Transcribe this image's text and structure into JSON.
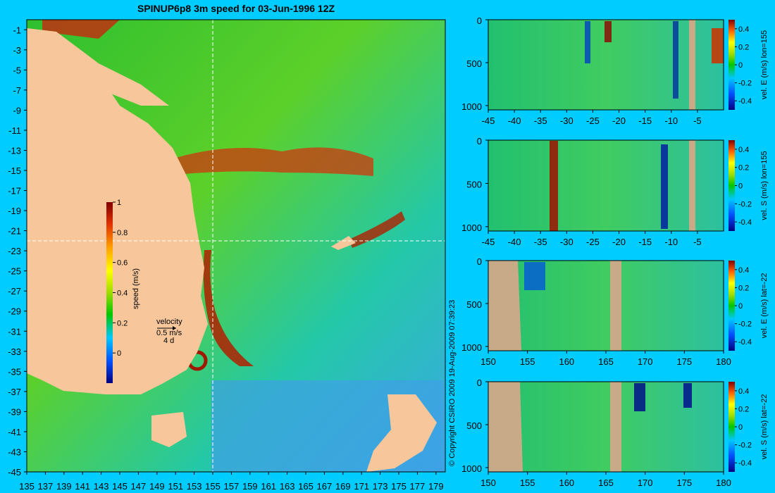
{
  "colors": {
    "background": "#00ccff",
    "land": "#f7c79b",
    "land_section": "#c8aa86",
    "colormap": [
      "#000080",
      "#0050ff",
      "#00c8ff",
      "#00c800",
      "#9fdc00",
      "#ffff00",
      "#ffa000",
      "#e03000",
      "#800000"
    ]
  },
  "chart_data": [
    {
      "type": "heatmap",
      "title": "SPINUP6p8 3m speed for 03-Jun-1996 12Z",
      "x_ticks": [
        "135",
        "137",
        "139",
        "141",
        "143",
        "145",
        "147",
        "149",
        "151",
        "153",
        "155",
        "157",
        "159",
        "161",
        "163",
        "165",
        "167",
        "169",
        "171",
        "173",
        "175",
        "177",
        "179"
      ],
      "y_ticks": [
        "-1",
        "-3",
        "-5",
        "-7",
        "-9",
        "-11",
        "-13",
        "-15",
        "-17",
        "-19",
        "-21",
        "-23",
        "-25",
        "-27",
        "-29",
        "-31",
        "-33",
        "-35",
        "-37",
        "-39",
        "-41",
        "-43",
        "-45"
      ],
      "xlim": [
        135,
        180
      ],
      "ylim": [
        -45,
        0
      ],
      "section_lines": {
        "lon": 155,
        "lat": -22
      },
      "colorbar": {
        "label": "speed (m/s)",
        "ticks": [
          "0",
          "0.2",
          "0.4",
          "0.6",
          "0.8",
          "1"
        ],
        "range": [
          -0.2,
          1
        ]
      },
      "velocity_key": {
        "title": "velocity",
        "speed": "0.5 m/s",
        "time": "4 d"
      }
    },
    {
      "type": "heatmap",
      "ylabel": "vel. E (m/s) lon=155",
      "x_ticks": [
        "-45",
        "-40",
        "-35",
        "-30",
        "-25",
        "-20",
        "-15",
        "-10",
        "-5"
      ],
      "xlim": [
        -45,
        0
      ],
      "y_ticks": [
        "0",
        "500",
        "1000"
      ],
      "ylim": [
        0,
        1050
      ],
      "colorbar_ticks": [
        "0.4",
        "0.2",
        "0",
        "-0.2",
        "-0.4"
      ]
    },
    {
      "type": "heatmap",
      "ylabel": "vel. S (m/s) lon=155",
      "x_ticks": [
        "-45",
        "-40",
        "-35",
        "-30",
        "-25",
        "-20",
        "-15",
        "-10",
        "-5"
      ],
      "xlim": [
        -45,
        0
      ],
      "y_ticks": [
        "0",
        "500",
        "1000"
      ],
      "ylim": [
        0,
        1050
      ],
      "colorbar_ticks": [
        "0.4",
        "0.2",
        "0",
        "-0.2",
        "-0.4"
      ]
    },
    {
      "type": "heatmap",
      "ylabel": "vel. E (m/s) lat=-22",
      "x_ticks": [
        "150",
        "155",
        "160",
        "165",
        "170",
        "175",
        "180"
      ],
      "xlim": [
        150,
        180
      ],
      "y_ticks": [
        "0",
        "500",
        "1000"
      ],
      "ylim": [
        0,
        1050
      ],
      "colorbar_ticks": [
        "0.4",
        "0.2",
        "0",
        "-0.2",
        "-0.4"
      ]
    },
    {
      "type": "heatmap",
      "ylabel": "vel. S (m/s) lat=-22",
      "x_ticks": [
        "150",
        "155",
        "160",
        "165",
        "170",
        "175",
        "180"
      ],
      "xlim": [
        150,
        180
      ],
      "y_ticks": [
        "0",
        "500",
        "1000"
      ],
      "ylim": [
        0,
        1050
      ],
      "colorbar_ticks": [
        "0.4",
        "0.2",
        "0",
        "-0.2",
        "-0.4"
      ]
    }
  ],
  "copyright": "© Copyright CSIRO 2009   19-Aug-2009 07:39:23"
}
